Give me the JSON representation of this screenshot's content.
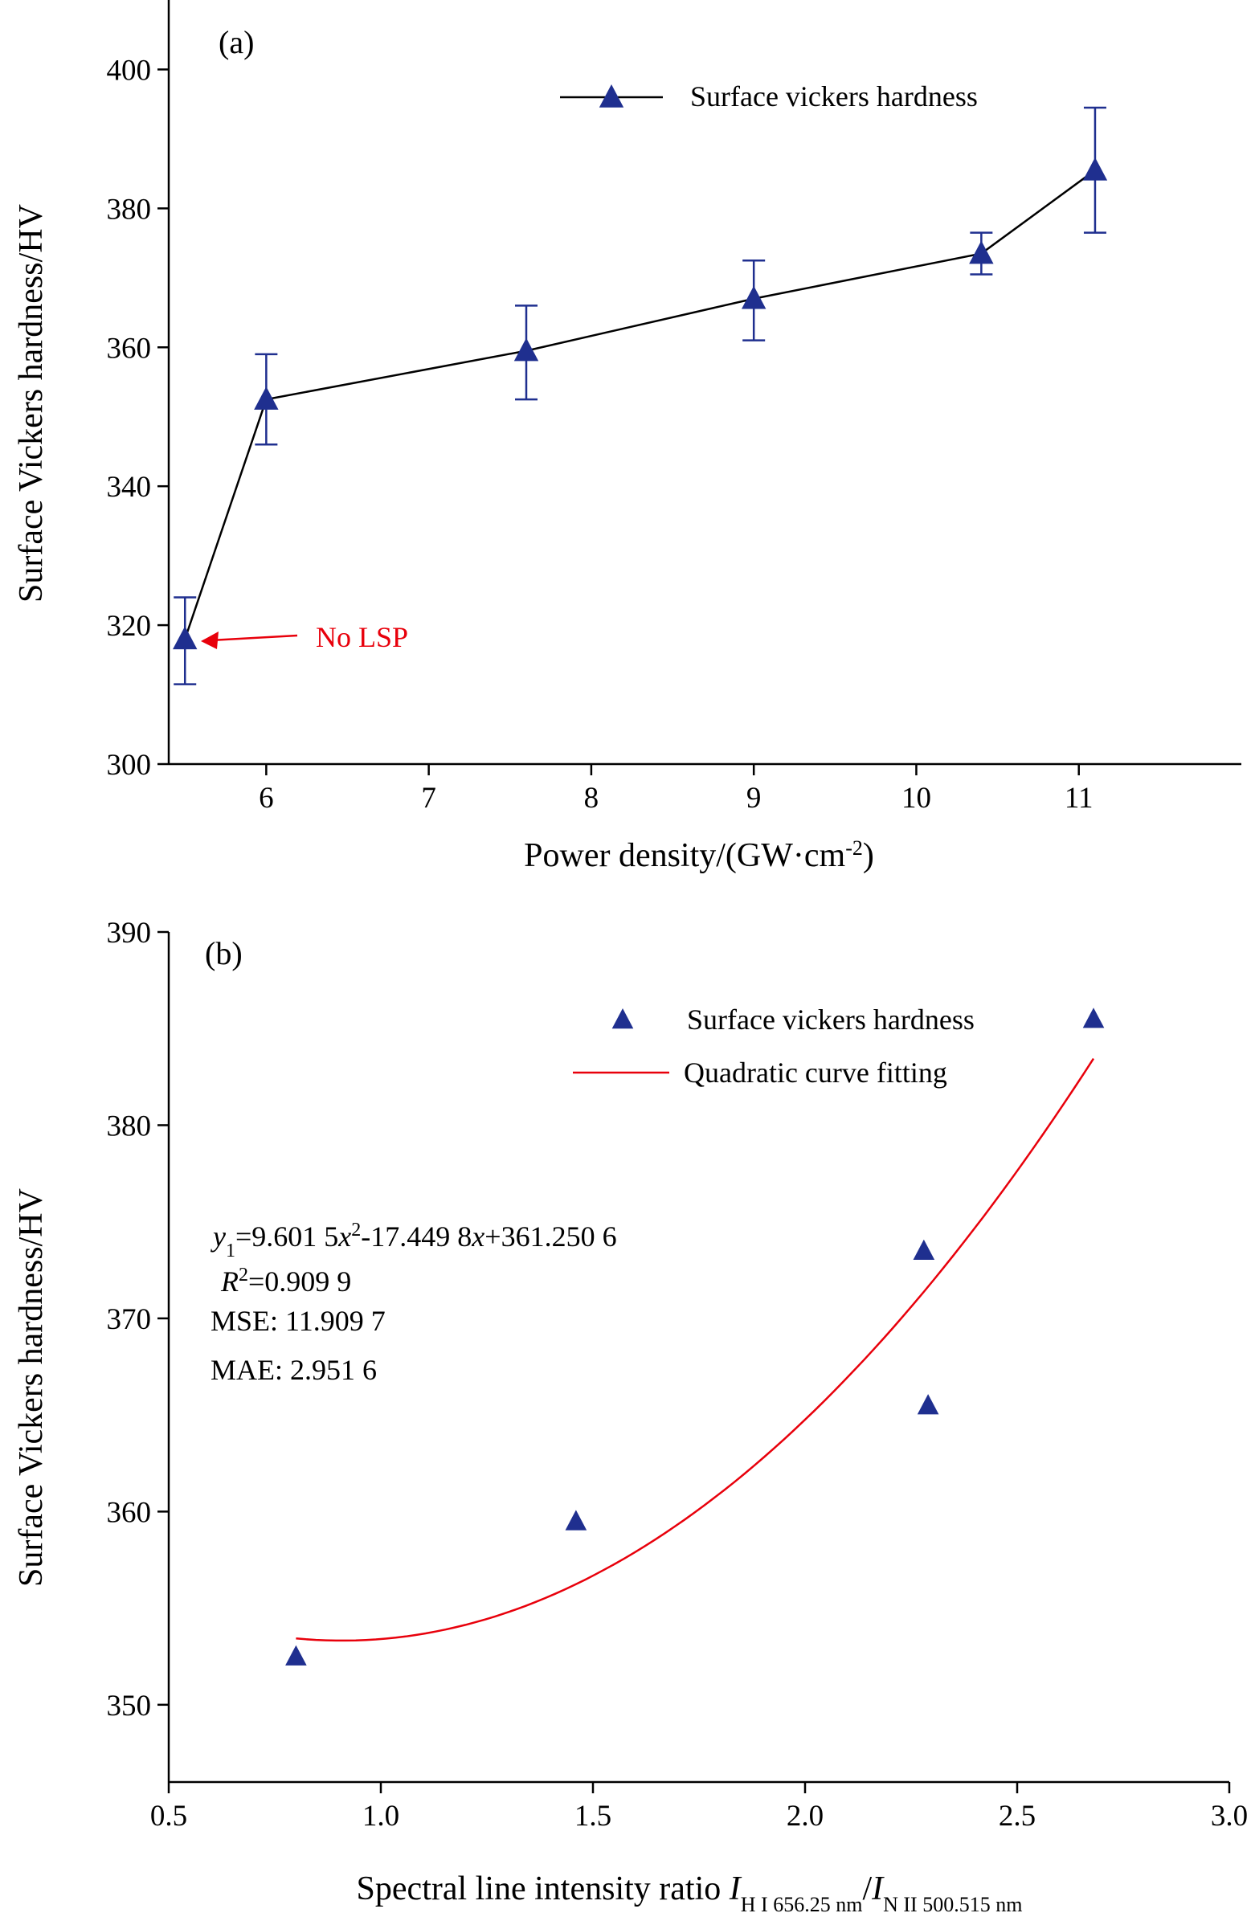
{
  "chart_data": [
    {
      "panel_label": "(a)",
      "type": "line",
      "xlabel": "Power density/(GW·cm⁻²)",
      "xlabel_main": "Power density/(GW·cm",
      "xlabel_sup": "-2",
      "xlabel_end": ")",
      "ylabel": "Surface Vickers hardness/HV",
      "xlim": [
        5.4,
        12.0
      ],
      "ylim": [
        300,
        410
      ],
      "xticks": [
        "6",
        "7",
        "8",
        "9",
        "10",
        "11"
      ],
      "yticks": [
        "300",
        "320",
        "340",
        "360",
        "380",
        "400"
      ],
      "series": [
        {
          "name": "Surface vickers hardness",
          "x": [
            5.5,
            6.0,
            7.6,
            9.0,
            10.4,
            11.1
          ],
          "y": [
            318,
            352.5,
            359.5,
            367,
            373.5,
            385.5
          ],
          "err_low": [
            311.5,
            346,
            352.5,
            361,
            370.5,
            376.5
          ],
          "err_high": [
            324,
            359,
            366,
            372.5,
            376.5,
            394.5
          ],
          "color": "#1f2f8f"
        }
      ],
      "line_color": "#000000",
      "annotation": {
        "text": "No LSP",
        "x": 5.5,
        "y": 318,
        "color": "#e8000b"
      }
    },
    {
      "panel_label": "(b)",
      "type": "scatter",
      "xlabel": "Spectral line intensity ratio I_H I 656.25 nm/I_N II 500.515 nm",
      "xlabel_main": "Spectral line intensity ratio ",
      "xlabel_I": "I",
      "xlabel_sub1": "H I 656.25 nm",
      "xlabel_slash": "/",
      "xlabel_sub2": "N II 500.515 nm",
      "ylabel": "Surface Vickers hardness/HV",
      "xlim": [
        0.5,
        3.0
      ],
      "ylim": [
        346,
        390
      ],
      "xticks": [
        "0.5",
        "1.0",
        "1.5",
        "2.0",
        "2.5",
        "3.0"
      ],
      "yticks": [
        "350",
        "360",
        "370",
        "380",
        "390"
      ],
      "series": [
        {
          "name": "Surface vickers hardness",
          "x": [
            0.8,
            1.46,
            2.28,
            2.29,
            2.68
          ],
          "y": [
            352.5,
            359.5,
            373.5,
            365.5,
            385.5
          ],
          "color": "#1f2f8f"
        },
        {
          "name": "Quadratic curve fitting",
          "type": "line",
          "x_range": [
            0.8,
            2.68
          ],
          "coefficients": {
            "a": 9.6015,
            "b": -17.4498,
            "c": 361.2506
          },
          "color": "#e8000b"
        }
      ],
      "equation": {
        "y": "y",
        "sub": "1",
        "t1": "=9.601 5",
        "x1": "x",
        "sup": "2",
        "t2": "-17.449 8",
        "x2": "x",
        "t3": "+361.250 6"
      },
      "r2": {
        "R": "R",
        "sup": "2",
        "rest": "=0.909 9"
      },
      "mse": "MSE: 11.909 7",
      "mae": "MAE: 2.951 6"
    }
  ]
}
